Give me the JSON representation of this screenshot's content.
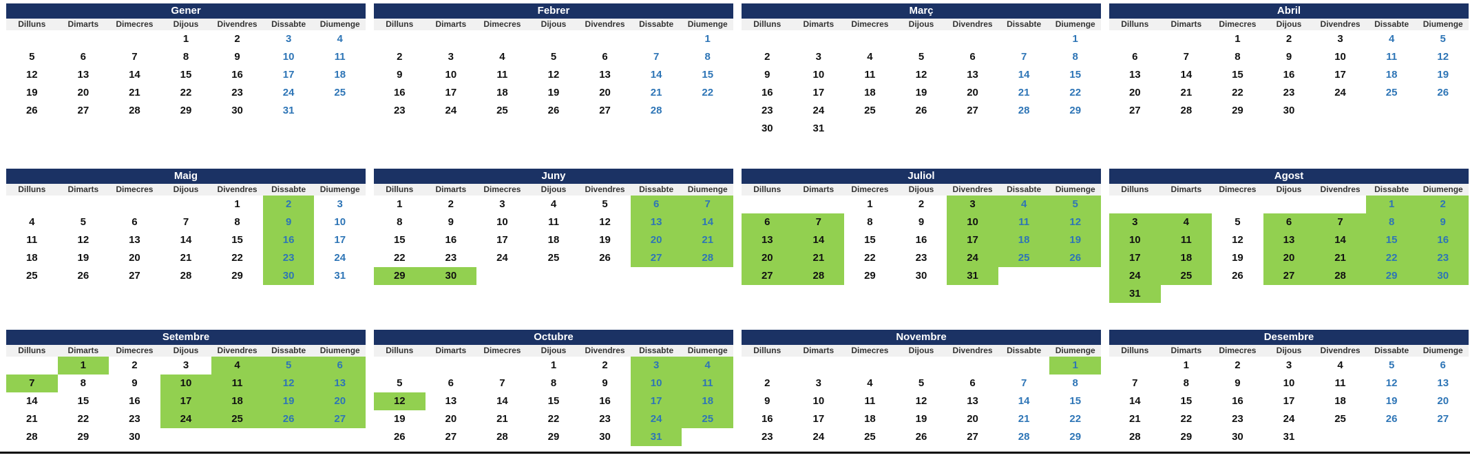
{
  "colors": {
    "header_bg": "#1B3264",
    "header_text": "#FFFFFF",
    "day_header_bg": "#F1F1F1",
    "day_header_text": "#333333",
    "weekday_text": "#111111",
    "weekend_text": "#2E75B6",
    "highlight_bg": "#92D050"
  },
  "calendar": {
    "day_headers": [
      "Dilluns",
      "Dimarts",
      "Dimecres",
      "Dijous",
      "Divendres",
      "Dissabte",
      "Diumenge"
    ],
    "months": [
      {
        "name": "Gener",
        "highlighted_days": [],
        "weeks": [
          [
            "",
            "",
            "",
            "1",
            "2",
            "3",
            "4"
          ],
          [
            "5",
            "6",
            "7",
            "8",
            "9",
            "10",
            "11"
          ],
          [
            "12",
            "13",
            "14",
            "15",
            "16",
            "17",
            "18"
          ],
          [
            "19",
            "20",
            "21",
            "22",
            "23",
            "24",
            "25"
          ],
          [
            "26",
            "27",
            "28",
            "29",
            "30",
            "31",
            ""
          ],
          [
            "",
            "",
            "",
            "",
            "",
            "",
            ""
          ]
        ]
      },
      {
        "name": "Febrer",
        "highlighted_days": [],
        "weeks": [
          [
            "",
            "",
            "",
            "",
            "",
            "",
            "1"
          ],
          [
            "2",
            "3",
            "4",
            "5",
            "6",
            "7",
            "8"
          ],
          [
            "9",
            "10",
            "11",
            "12",
            "13",
            "14",
            "15"
          ],
          [
            "16",
            "17",
            "18",
            "19",
            "20",
            "21",
            "22"
          ],
          [
            "23",
            "24",
            "25",
            "26",
            "27",
            "28",
            ""
          ],
          [
            "",
            "",
            "",
            "",
            "",
            "",
            ""
          ]
        ]
      },
      {
        "name": "Març",
        "highlighted_days": [],
        "weeks": [
          [
            "",
            "",
            "",
            "",
            "",
            "",
            "1"
          ],
          [
            "2",
            "3",
            "4",
            "5",
            "6",
            "7",
            "8"
          ],
          [
            "9",
            "10",
            "11",
            "12",
            "13",
            "14",
            "15"
          ],
          [
            "16",
            "17",
            "18",
            "19",
            "20",
            "21",
            "22"
          ],
          [
            "23",
            "24",
            "25",
            "26",
            "27",
            "28",
            "29"
          ],
          [
            "30",
            "31",
            "",
            "",
            "",
            "",
            ""
          ]
        ]
      },
      {
        "name": "Abril",
        "highlighted_days": [],
        "weeks": [
          [
            "",
            "",
            "1",
            "2",
            "3",
            "4",
            "5"
          ],
          [
            "6",
            "7",
            "8",
            "9",
            "10",
            "11",
            "12"
          ],
          [
            "13",
            "14",
            "15",
            "16",
            "17",
            "18",
            "19"
          ],
          [
            "20",
            "21",
            "22",
            "23",
            "24",
            "25",
            "26"
          ],
          [
            "27",
            "28",
            "29",
            "30",
            "",
            "",
            ""
          ],
          [
            "",
            "",
            "",
            "",
            "",
            "",
            ""
          ]
        ]
      },
      {
        "name": "Maig",
        "highlighted_days": [
          2,
          9,
          16,
          23,
          30
        ],
        "weeks": [
          [
            "",
            "",
            "",
            "",
            "1",
            "2",
            "3"
          ],
          [
            "4",
            "5",
            "6",
            "7",
            "8",
            "9",
            "10"
          ],
          [
            "11",
            "12",
            "13",
            "14",
            "15",
            "16",
            "17"
          ],
          [
            "18",
            "19",
            "20",
            "21",
            "22",
            "23",
            "24"
          ],
          [
            "25",
            "26",
            "27",
            "28",
            "29",
            "30",
            "31"
          ],
          [
            "",
            "",
            "",
            "",
            "",
            "",
            ""
          ]
        ]
      },
      {
        "name": "Juny",
        "highlighted_days": [
          6,
          7,
          13,
          14,
          20,
          21,
          27,
          28,
          29,
          30
        ],
        "weeks": [
          [
            "1",
            "2",
            "3",
            "4",
            "5",
            "6",
            "7"
          ],
          [
            "8",
            "9",
            "10",
            "11",
            "12",
            "13",
            "14"
          ],
          [
            "15",
            "16",
            "17",
            "18",
            "19",
            "20",
            "21"
          ],
          [
            "22",
            "23",
            "24",
            "25",
            "26",
            "27",
            "28"
          ],
          [
            "29",
            "30",
            "",
            "",
            "",
            "",
            ""
          ],
          [
            "",
            "",
            "",
            "",
            "",
            "",
            ""
          ]
        ]
      },
      {
        "name": "Juliol",
        "highlighted_days": [
          3,
          4,
          5,
          6,
          7,
          10,
          11,
          12,
          13,
          14,
          17,
          18,
          19,
          20,
          21,
          24,
          25,
          26,
          27,
          28,
          31
        ],
        "weeks": [
          [
            "",
            "",
            "1",
            "2",
            "3",
            "4",
            "5"
          ],
          [
            "6",
            "7",
            "8",
            "9",
            "10",
            "11",
            "12"
          ],
          [
            "13",
            "14",
            "15",
            "16",
            "17",
            "18",
            "19"
          ],
          [
            "20",
            "21",
            "22",
            "23",
            "24",
            "25",
            "26"
          ],
          [
            "27",
            "28",
            "29",
            "30",
            "31",
            "",
            ""
          ],
          [
            "",
            "",
            "",
            "",
            "",
            "",
            ""
          ]
        ]
      },
      {
        "name": "Agost",
        "highlighted_days": [
          1,
          2,
          3,
          4,
          6,
          7,
          8,
          9,
          10,
          11,
          13,
          14,
          15,
          16,
          17,
          18,
          20,
          21,
          22,
          23,
          24,
          25,
          27,
          28,
          29,
          30,
          31
        ],
        "weeks": [
          [
            "",
            "",
            "",
            "",
            "",
            "1",
            "2"
          ],
          [
            "3",
            "4",
            "5",
            "6",
            "7",
            "8",
            "9"
          ],
          [
            "10",
            "11",
            "12",
            "13",
            "14",
            "15",
            "16"
          ],
          [
            "17",
            "18",
            "19",
            "20",
            "21",
            "22",
            "23"
          ],
          [
            "24",
            "25",
            "26",
            "27",
            "28",
            "29",
            "30"
          ],
          [
            "31",
            "",
            "",
            "",
            "",
            "",
            ""
          ]
        ]
      },
      {
        "name": "Setembre",
        "highlighted_days": [
          1,
          4,
          5,
          6,
          7,
          10,
          11,
          12,
          13,
          17,
          18,
          19,
          20,
          24,
          25,
          26,
          27
        ],
        "weeks": [
          [
            "",
            "1",
            "2",
            "3",
            "4",
            "5",
            "6"
          ],
          [
            "7",
            "8",
            "9",
            "10",
            "11",
            "12",
            "13"
          ],
          [
            "14",
            "15",
            "16",
            "17",
            "18",
            "19",
            "20"
          ],
          [
            "21",
            "22",
            "23",
            "24",
            "25",
            "26",
            "27"
          ],
          [
            "28",
            "29",
            "30",
            "",
            "",
            "",
            ""
          ],
          [
            "",
            "",
            "",
            "",
            "",
            "",
            ""
          ]
        ]
      },
      {
        "name": "Octubre",
        "highlighted_days": [
          3,
          4,
          10,
          11,
          12,
          17,
          18,
          24,
          25,
          31
        ],
        "weeks": [
          [
            "",
            "",
            "",
            "1",
            "2",
            "3",
            "4"
          ],
          [
            "5",
            "6",
            "7",
            "8",
            "9",
            "10",
            "11"
          ],
          [
            "12",
            "13",
            "14",
            "15",
            "16",
            "17",
            "18"
          ],
          [
            "19",
            "20",
            "21",
            "22",
            "23",
            "24",
            "25"
          ],
          [
            "26",
            "27",
            "28",
            "29",
            "30",
            "31",
            ""
          ],
          [
            "",
            "",
            "",
            "",
            "",
            "",
            ""
          ]
        ]
      },
      {
        "name": "Novembre",
        "highlighted_days": [
          1
        ],
        "weeks": [
          [
            "",
            "",
            "",
            "",
            "",
            "",
            "1"
          ],
          [
            "2",
            "3",
            "4",
            "5",
            "6",
            "7",
            "8"
          ],
          [
            "9",
            "10",
            "11",
            "12",
            "13",
            "14",
            "15"
          ],
          [
            "16",
            "17",
            "18",
            "19",
            "20",
            "21",
            "22"
          ],
          [
            "23",
            "24",
            "25",
            "26",
            "27",
            "28",
            "29"
          ],
          [
            "",
            "",
            "",
            "",
            "",
            "",
            ""
          ]
        ]
      },
      {
        "name": "Desembre",
        "highlighted_days": [],
        "weeks": [
          [
            "",
            "1",
            "2",
            "3",
            "4",
            "5",
            "6"
          ],
          [
            "7",
            "8",
            "9",
            "10",
            "11",
            "12",
            "13"
          ],
          [
            "14",
            "15",
            "16",
            "17",
            "18",
            "19",
            "20"
          ],
          [
            "21",
            "22",
            "23",
            "24",
            "25",
            "26",
            "27"
          ],
          [
            "28",
            "29",
            "30",
            "31",
            "",
            "",
            ""
          ],
          [
            "",
            "",
            "",
            "",
            "",
            "",
            ""
          ]
        ]
      }
    ]
  }
}
